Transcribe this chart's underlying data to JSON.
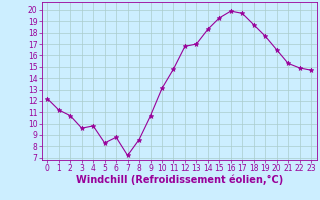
{
  "x": [
    0,
    1,
    2,
    3,
    4,
    5,
    6,
    7,
    8,
    9,
    10,
    11,
    12,
    13,
    14,
    15,
    16,
    17,
    18,
    19,
    20,
    21,
    22,
    23
  ],
  "y": [
    12.2,
    11.2,
    10.7,
    9.6,
    9.8,
    8.3,
    8.8,
    7.2,
    8.6,
    10.7,
    13.1,
    14.8,
    16.8,
    17.0,
    18.3,
    19.3,
    19.9,
    19.7,
    18.7,
    17.7,
    16.5,
    15.3,
    14.9,
    14.7
  ],
  "line_color": "#990099",
  "marker": "*",
  "marker_size": 3.5,
  "bg_color": "#cceeff",
  "grid_color": "#aacccc",
  "xlabel": "Windchill (Refroidissement éolien,°C)",
  "xlabel_color": "#990099",
  "xlim": [
    -0.5,
    23.5
  ],
  "ylim": [
    6.8,
    20.7
  ],
  "yticks": [
    7,
    8,
    9,
    10,
    11,
    12,
    13,
    14,
    15,
    16,
    17,
    18,
    19,
    20
  ],
  "xticks": [
    0,
    1,
    2,
    3,
    4,
    5,
    6,
    7,
    8,
    9,
    10,
    11,
    12,
    13,
    14,
    15,
    16,
    17,
    18,
    19,
    20,
    21,
    22,
    23
  ],
  "tick_color": "#990099",
  "tick_fontsize": 5.5,
  "xlabel_fontsize": 7.0,
  "linewidth": 0.8
}
